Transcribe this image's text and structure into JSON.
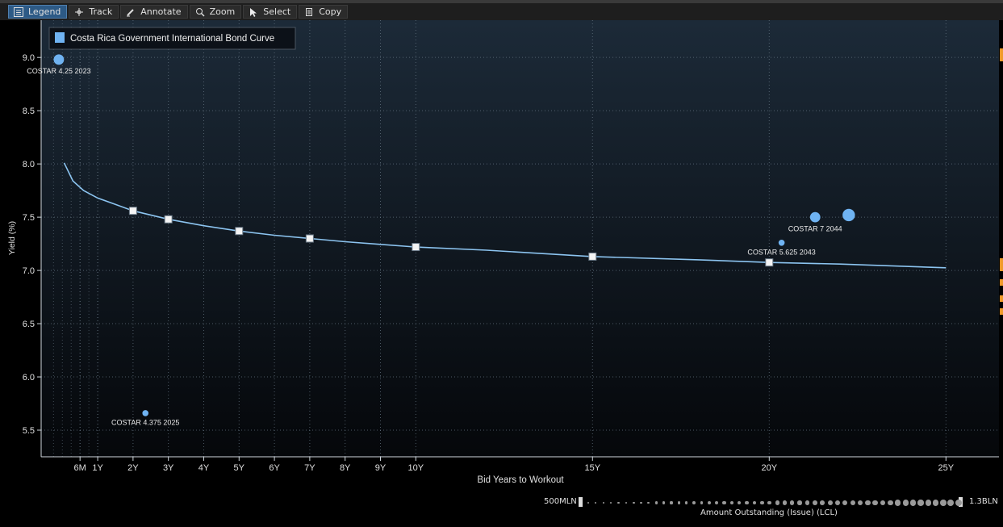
{
  "toolbar": {
    "items": [
      {
        "label": "Legend",
        "icon": "legend-icon",
        "active": true
      },
      {
        "label": "Track",
        "icon": "crosshair-icon",
        "active": false
      },
      {
        "label": "Annotate",
        "icon": "pencil-icon",
        "active": false
      },
      {
        "label": "Zoom",
        "icon": "magnifier-icon",
        "active": false
      },
      {
        "label": "Select",
        "icon": "cursor-icon",
        "active": false
      },
      {
        "label": "Copy",
        "icon": "copy-icon",
        "active": false
      }
    ]
  },
  "colors": {
    "background_top": "#1c2a38",
    "background_bottom": "#05070a",
    "curve": "#8cc4f0",
    "marker": "#6fb3f2",
    "grid": "#6a7a88",
    "edge_accent": "#f09a2a"
  },
  "chart_data": {
    "type": "scatter",
    "title": "",
    "legend": [
      {
        "name": "Costa Rica Government International Bond Curve",
        "color": "#6fb3f2"
      }
    ],
    "legend_position": "top-left",
    "xlabel": "Bid Years to Workout",
    "ylabel": "Yield (%)",
    "xlim": [
      -0.6,
      26.5
    ],
    "ylim": [
      5.25,
      9.35
    ],
    "x_ticks": [
      {
        "label": "6M",
        "value": 0.5
      },
      {
        "label": "1Y",
        "value": 1
      },
      {
        "label": "2Y",
        "value": 2
      },
      {
        "label": "3Y",
        "value": 3
      },
      {
        "label": "4Y",
        "value": 4
      },
      {
        "label": "5Y",
        "value": 5
      },
      {
        "label": "6Y",
        "value": 6
      },
      {
        "label": "7Y",
        "value": 7
      },
      {
        "label": "8Y",
        "value": 8
      },
      {
        "label": "9Y",
        "value": 9
      },
      {
        "label": "10Y",
        "value": 10
      },
      {
        "label": "15Y",
        "value": 15
      },
      {
        "label": "20Y",
        "value": 20
      },
      {
        "label": "25Y",
        "value": 25
      }
    ],
    "y_ticks": [
      "5.5",
      "6.0",
      "6.5",
      "7.0",
      "7.5",
      "8.0",
      "8.5",
      "9.0"
    ],
    "grid": true,
    "curve": [
      [
        0.05,
        8.01
      ],
      [
        0.3,
        7.84
      ],
      [
        0.6,
        7.75
      ],
      [
        1.0,
        7.68
      ],
      [
        1.5,
        7.62
      ],
      [
        2,
        7.56
      ],
      [
        3,
        7.48
      ],
      [
        4,
        7.42
      ],
      [
        5,
        7.37
      ],
      [
        6,
        7.33
      ],
      [
        7,
        7.3
      ],
      [
        8,
        7.27
      ],
      [
        9,
        7.245
      ],
      [
        10,
        7.22
      ],
      [
        12,
        7.19
      ],
      [
        15,
        7.13
      ],
      [
        18,
        7.1
      ],
      [
        20,
        7.075
      ],
      [
        22,
        7.06
      ],
      [
        25,
        7.025
      ]
    ],
    "curve_nodes": [
      {
        "x": 2,
        "y": 7.56
      },
      {
        "x": 3,
        "y": 7.48
      },
      {
        "x": 5,
        "y": 7.37
      },
      {
        "x": 7,
        "y": 7.3
      },
      {
        "x": 10,
        "y": 7.22
      },
      {
        "x": 15,
        "y": 7.13
      },
      {
        "x": 20,
        "y": 7.075
      }
    ],
    "bonds": [
      {
        "label": "COSTAR 4.25 2023",
        "x": -0.1,
        "y": 8.98,
        "size": 3
      },
      {
        "label": "COSTAR 4.375 2025",
        "x": 2.35,
        "y": 5.66,
        "size": 1
      },
      {
        "label": "COSTAR 5.625 2043",
        "x": 20.35,
        "y": 7.26,
        "size": 1
      },
      {
        "label": "COSTAR 7 2044",
        "x": 21.3,
        "y": 7.5,
        "size": 3
      },
      {
        "label": "",
        "x": 22.25,
        "y": 7.52,
        "size": 4
      }
    ]
  },
  "slider": {
    "min_label": "500MLN",
    "max_label": "1.3BLN",
    "caption": "Amount Outstanding (Issue) (LCL)"
  }
}
